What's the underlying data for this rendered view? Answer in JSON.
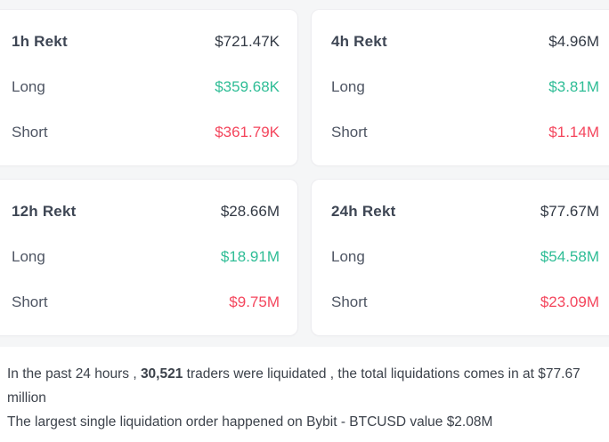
{
  "colors": {
    "long": "#2fbd96",
    "short": "#f4465d",
    "title": "#3e4654",
    "total": "#333a45",
    "label": "#4e5563",
    "text": "#3c424b",
    "card_bg": "#ffffff",
    "card_border": "#ededf0",
    "gap_bg": "#f5f6f7"
  },
  "cards": [
    {
      "title": "1h Rekt",
      "total": "$721.47K",
      "long_label": "Long",
      "long_value": "$359.68K",
      "short_label": "Short",
      "short_value": "$361.79K"
    },
    {
      "title": "4h Rekt",
      "total": "$4.96M",
      "long_label": "Long",
      "long_value": "$3.81M",
      "short_label": "Short",
      "short_value": "$1.14M"
    },
    {
      "title": "12h Rekt",
      "total": "$28.66M",
      "long_label": "Long",
      "long_value": "$18.91M",
      "short_label": "Short",
      "short_value": "$9.75M"
    },
    {
      "title": "24h Rekt",
      "total": "$77.67M",
      "long_label": "Long",
      "long_value": "$54.58M",
      "short_label": "Short",
      "short_value": "$23.09M"
    }
  ],
  "summary": {
    "line1_prefix": "In the past 24 hours , ",
    "traders_count": "30,521",
    "line1_suffix": " traders were liquidated , the total liquidations comes in at $77.67 million",
    "line2": "The largest single liquidation order happened on Bybit - BTCUSD value $2.08M"
  }
}
